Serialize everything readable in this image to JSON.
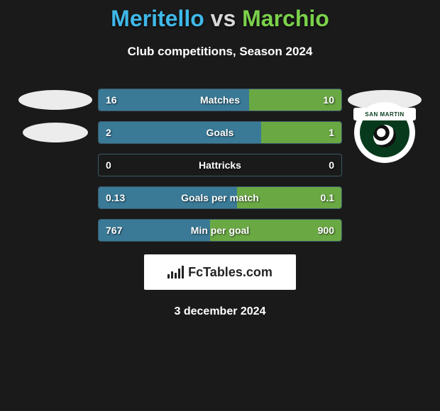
{
  "title": {
    "player1": "Meritello",
    "vs": "vs",
    "player2": "Marchio",
    "player1_color": "#3fb8e8",
    "vs_color": "#d8d8d8",
    "player2_color": "#7bd14b"
  },
  "subtitle": "Club competitions, Season 2024",
  "bar_style": {
    "left_fill_color": "#3a7a97",
    "right_fill_color": "#6aa843",
    "border_color": "#3a5a6a"
  },
  "rows": [
    {
      "metric": "Matches",
      "left": "16",
      "right": "10",
      "left_pct": 62,
      "right_pct": 38
    },
    {
      "metric": "Goals",
      "left": "2",
      "right": "1",
      "left_pct": 67,
      "right_pct": 33
    },
    {
      "metric": "Hattricks",
      "left": "0",
      "right": "0",
      "left_pct": 0,
      "right_pct": 0
    },
    {
      "metric": "Goals per match",
      "left": "0.13",
      "right": "0.1",
      "left_pct": 57,
      "right_pct": 43
    },
    {
      "metric": "Min per goal",
      "left": "767",
      "right": "900",
      "left_pct": 46,
      "right_pct": 54
    }
  ],
  "club_badge": {
    "text": "SAN MARTIN",
    "outer_bg": "#ffffff",
    "inner_bg": "#073a1c"
  },
  "footer": {
    "brand": "FcTables.com",
    "date": "3 december 2024"
  }
}
